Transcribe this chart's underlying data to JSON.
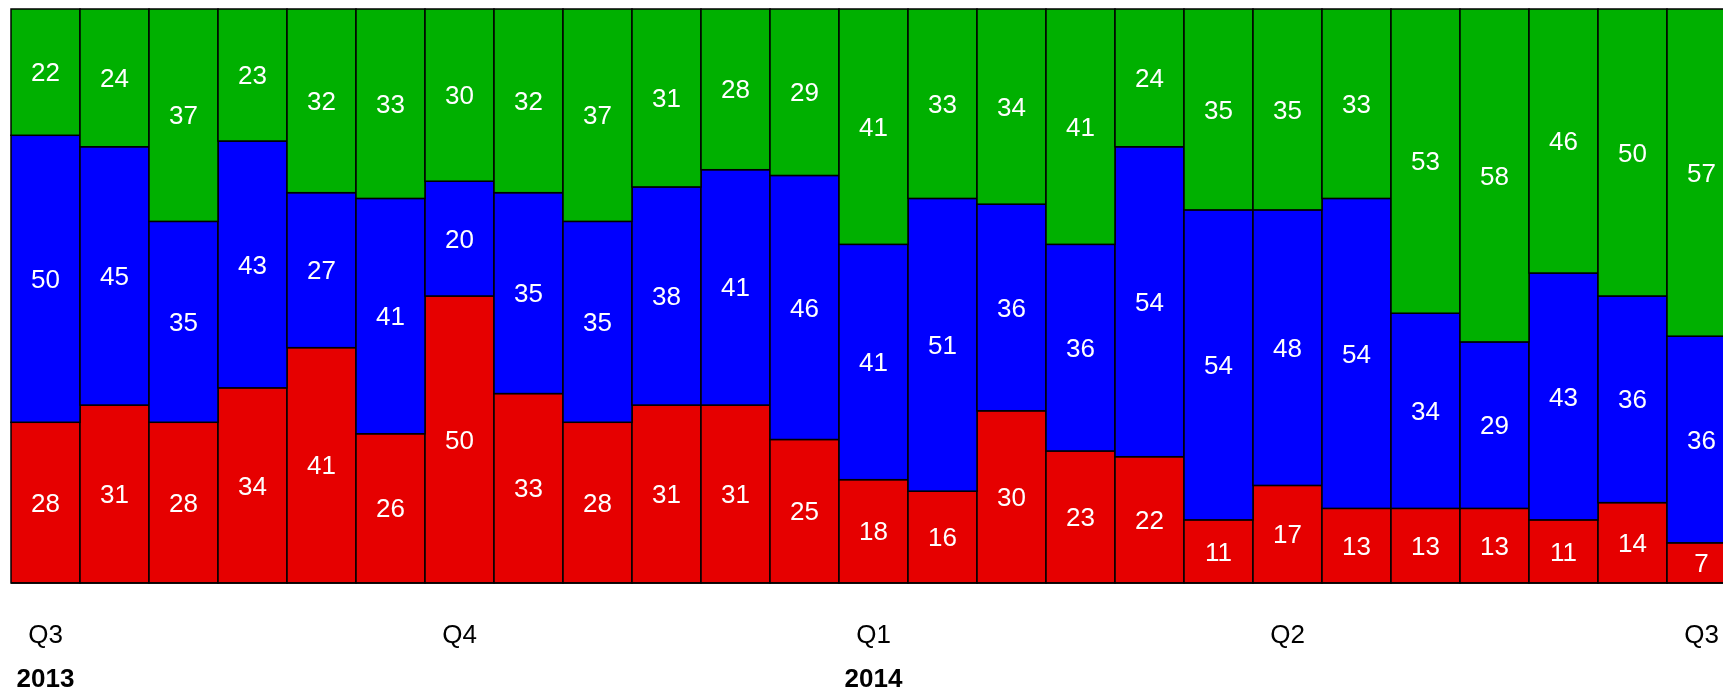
{
  "chart_data": {
    "type": "bar",
    "stacked": true,
    "data_labels": true,
    "tick_labels": "x",
    "categories": [
      "Q3\n2013",
      null,
      null,
      null,
      null,
      null,
      "Q4",
      null,
      null,
      null,
      null,
      null,
      "Q1\n2014",
      null,
      null,
      null,
      null,
      null,
      "Q2",
      null,
      null,
      null,
      null,
      null,
      "Q3"
    ],
    "series": [
      {
        "color": "#e60000",
        "values": [
          28,
          31,
          28,
          34,
          41,
          26,
          50,
          33,
          28,
          31,
          31,
          25,
          18,
          16,
          30,
          23,
          22,
          11,
          17,
          13,
          13,
          13,
          11,
          14,
          7
        ]
      },
      {
        "color": "#0000ff",
        "values": [
          50,
          45,
          35,
          43,
          27,
          41,
          20,
          35,
          35,
          38,
          41,
          46,
          41,
          51,
          36,
          36,
          54,
          54,
          48,
          54,
          34,
          29,
          43,
          36,
          36
        ]
      },
      {
        "color": "#00b000",
        "values": [
          22,
          24,
          37,
          23,
          32,
          33,
          30,
          32,
          37,
          31,
          28,
          29,
          41,
          33,
          34,
          41,
          24,
          35,
          35,
          33,
          53,
          58,
          46,
          50,
          57
        ]
      }
    ]
  }
}
